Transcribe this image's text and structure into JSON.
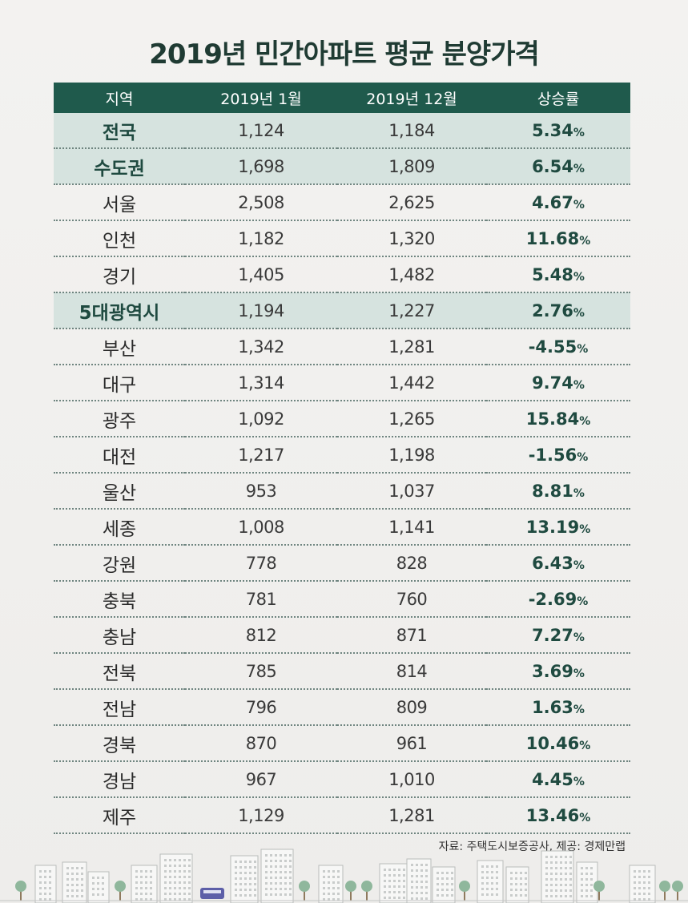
{
  "title": "2019년 민간아파트 평균 분양가격",
  "source": "자료: 주택도시보증공사, 제공: 경제만랩",
  "colors": {
    "header_bg": "#1f5a4c",
    "highlight_row": "#d6e3df",
    "rate_text": "#1f4a40",
    "title_text": "#1f3b33"
  },
  "chart_data": {
    "type": "table",
    "title": "2019년 민간아파트 평균 분양가격",
    "columns": [
      "지역",
      "2019년 1월",
      "2019년 12월",
      "상승률"
    ],
    "rows": [
      {
        "region": "전국",
        "jan": "1,124",
        "dec": "1,184",
        "rate": "5.34",
        "unit": "%",
        "highlight": true
      },
      {
        "region": "수도권",
        "jan": "1,698",
        "dec": "1,809",
        "rate": "6.54",
        "unit": "%",
        "highlight": true
      },
      {
        "region": "서울",
        "jan": "2,508",
        "dec": "2,625",
        "rate": "4.67",
        "unit": "%",
        "highlight": false
      },
      {
        "region": "인천",
        "jan": "1,182",
        "dec": "1,320",
        "rate": "11.68",
        "unit": "%",
        "highlight": false
      },
      {
        "region": "경기",
        "jan": "1,405",
        "dec": "1,482",
        "rate": "5.48",
        "unit": "%",
        "highlight": false
      },
      {
        "region": "5대광역시",
        "jan": "1,194",
        "dec": "1,227",
        "rate": "2.76",
        "unit": "%",
        "highlight": true
      },
      {
        "region": "부산",
        "jan": "1,342",
        "dec": "1,281",
        "rate": "-4.55",
        "unit": "%",
        "highlight": false
      },
      {
        "region": "대구",
        "jan": "1,314",
        "dec": "1,442",
        "rate": "9.74",
        "unit": "%",
        "highlight": false
      },
      {
        "region": "광주",
        "jan": "1,092",
        "dec": "1,265",
        "rate": "15.84",
        "unit": "%",
        "highlight": false
      },
      {
        "region": "대전",
        "jan": "1,217",
        "dec": "1,198",
        "rate": "-1.56",
        "unit": "%",
        "highlight": false
      },
      {
        "region": "울산",
        "jan": "953",
        "dec": "1,037",
        "rate": "8.81",
        "unit": "%",
        "highlight": false
      },
      {
        "region": "세종",
        "jan": "1,008",
        "dec": "1,141",
        "rate": "13.19",
        "unit": "%",
        "highlight": false
      },
      {
        "region": "강원",
        "jan": "778",
        "dec": "828",
        "rate": "6.43",
        "unit": "%",
        "highlight": false
      },
      {
        "region": "충북",
        "jan": "781",
        "dec": "760",
        "rate": "-2.69",
        "unit": "%",
        "highlight": false
      },
      {
        "region": "충남",
        "jan": "812",
        "dec": "871",
        "rate": "7.27",
        "unit": "%",
        "highlight": false
      },
      {
        "region": "전북",
        "jan": "785",
        "dec": "814",
        "rate": "3.69",
        "unit": "%",
        "highlight": false
      },
      {
        "region": "전남",
        "jan": "796",
        "dec": "809",
        "rate": "1.63",
        "unit": "%",
        "highlight": false
      },
      {
        "region": "경북",
        "jan": "870",
        "dec": "961",
        "rate": "10.46",
        "unit": "%",
        "highlight": false
      },
      {
        "region": "경남",
        "jan": "967",
        "dec": "1,010",
        "rate": "4.45",
        "unit": "%",
        "highlight": false
      },
      {
        "region": "제주",
        "jan": "1,129",
        "dec": "1,281",
        "rate": "13.46",
        "unit": "%",
        "highlight": false
      }
    ]
  },
  "decoration": {
    "skyline_icon": "city-skyline-icon"
  }
}
